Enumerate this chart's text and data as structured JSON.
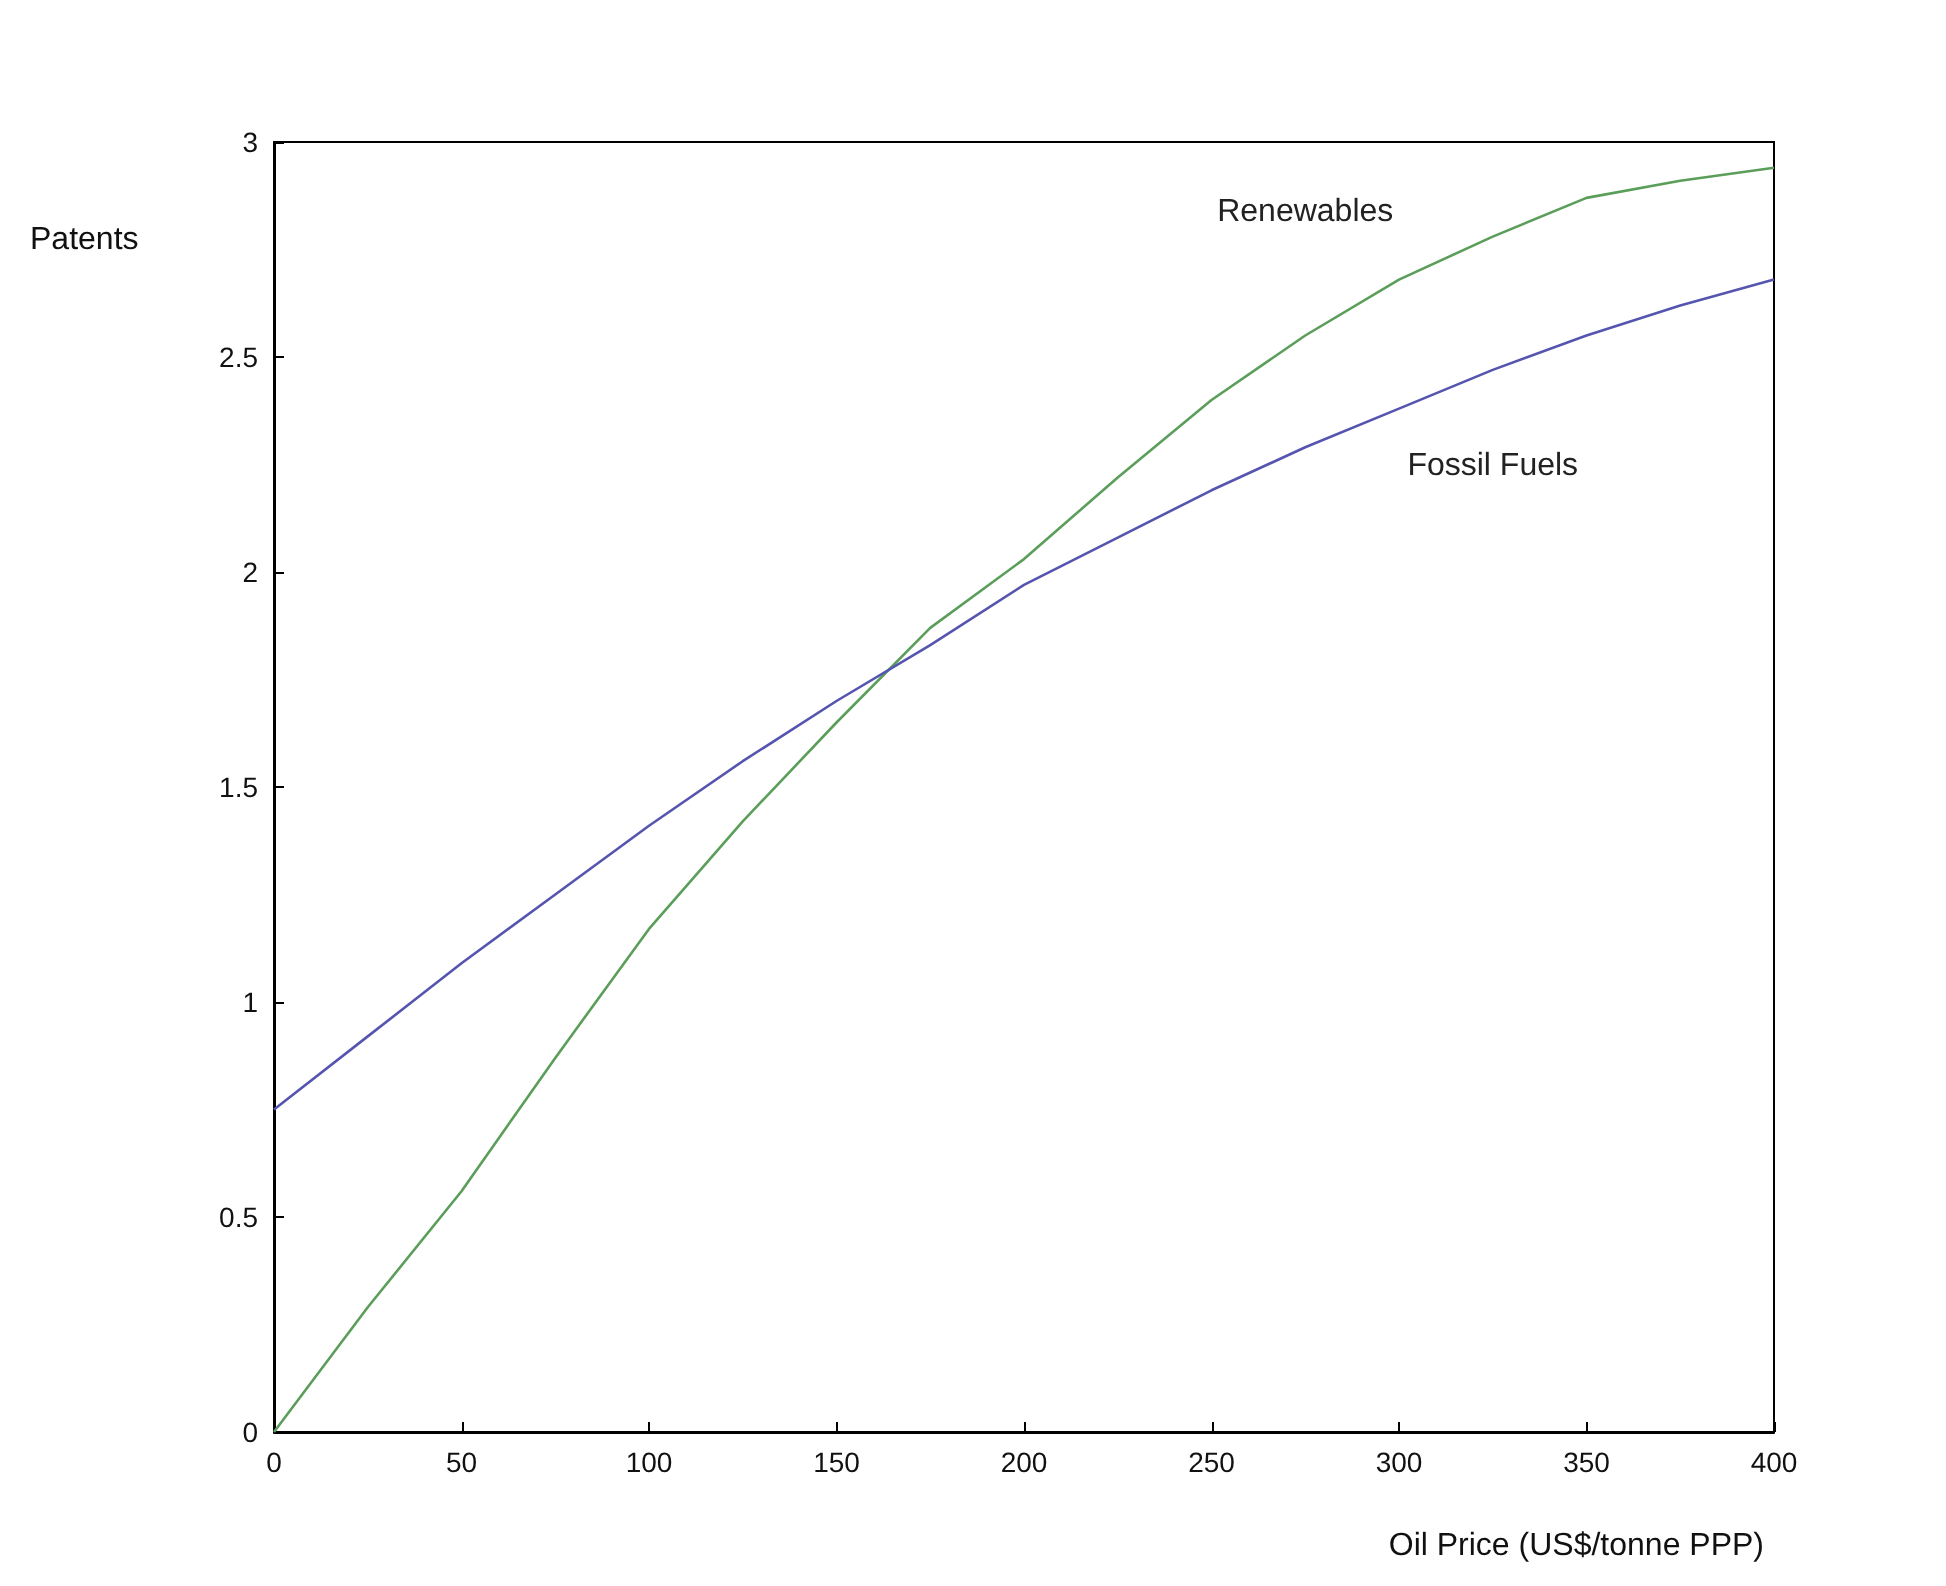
{
  "chart_data": {
    "type": "line",
    "xlabel": "Oil Price (US$/tonne PPP)",
    "ylabel": "Patents",
    "x": [
      0,
      25,
      50,
      75,
      100,
      125,
      150,
      175,
      200,
      225,
      250,
      275,
      300,
      325,
      350,
      375,
      400
    ],
    "series": [
      {
        "name": "Renewables",
        "color": "#5a9e5a",
        "values": [
          0,
          0.29,
          0.56,
          0.87,
          1.17,
          1.42,
          1.65,
          1.87,
          2.03,
          2.22,
          2.4,
          2.55,
          2.68,
          2.78,
          2.87,
          2.91,
          2.94
        ]
      },
      {
        "name": "Fossil Fuels",
        "color": "#5555b0",
        "values": [
          0.75,
          0.92,
          1.09,
          1.25,
          1.41,
          1.56,
          1.7,
          1.83,
          1.97,
          2.08,
          2.19,
          2.29,
          2.38,
          2.47,
          2.55,
          2.62,
          2.68
        ]
      }
    ],
    "xlim": [
      0,
      400
    ],
    "xticks": [
      0,
      50,
      100,
      150,
      200,
      250,
      300,
      350,
      400
    ],
    "ylim": [
      0,
      3
    ],
    "yticks": [
      0,
      0.5,
      1,
      1.5,
      2,
      2.5,
      3
    ],
    "grid": false,
    "legend": false,
    "marker": "none",
    "line_style": "solid"
  }
}
